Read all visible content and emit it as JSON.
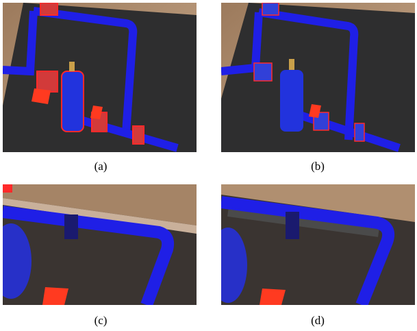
{
  "figure": {
    "panels": [
      {
        "id": "a",
        "caption": "(a)"
      },
      {
        "id": "b",
        "caption": "(b)"
      },
      {
        "id": "c",
        "caption": "(c)"
      },
      {
        "id": "d",
        "caption": "(d)"
      }
    ]
  },
  "colors": {
    "wall": "#b79575",
    "board": "#2e2e2f",
    "pipe_blue": "#1f1fe6",
    "highlight_red": "#ff2a2a",
    "valve_red": "#e8321e"
  }
}
